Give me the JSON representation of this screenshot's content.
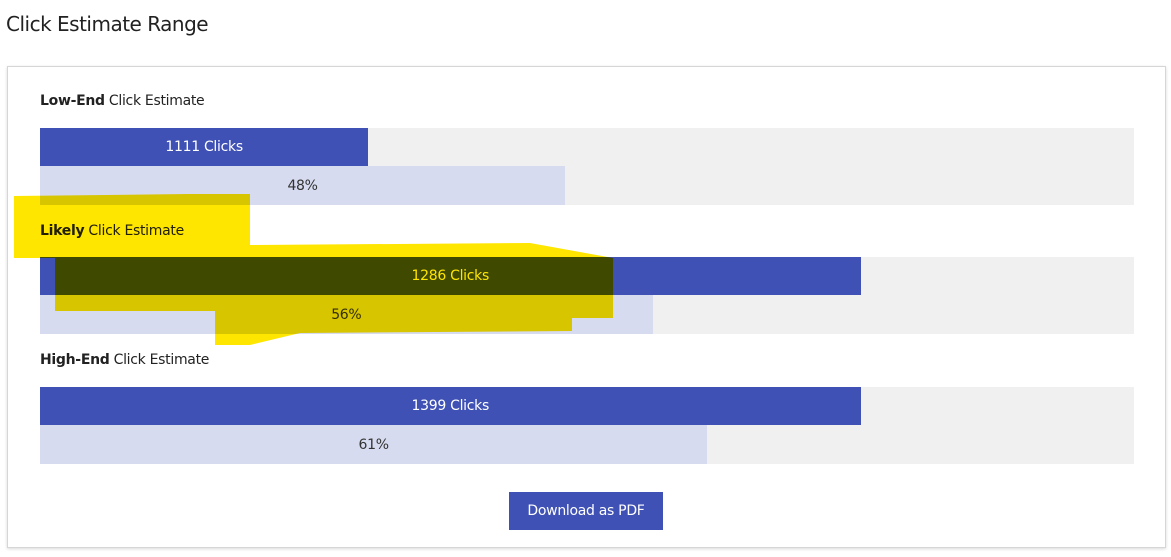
{
  "title": "Click Estimate Range",
  "rows": [
    {
      "strong": "Low-End",
      "rest": " Click Estimate",
      "clicks_label": "1111 Clicks",
      "clicks_fill_pct": 30,
      "percent_label": "48%",
      "percent": 48
    },
    {
      "strong": "Likely",
      "rest": " Click Estimate",
      "clicks_label": "1286 Clicks",
      "clicks_fill_pct": 75,
      "percent_label": "56%",
      "percent": 56
    },
    {
      "strong": "High-End",
      "rest": " Click Estimate",
      "clicks_label": "1399 Clicks",
      "clicks_fill_pct": 75,
      "percent_label": "61%",
      "percent": 61
    }
  ],
  "download_button": "Download as PDF",
  "colors": {
    "accent": "#3f51b5",
    "light_bar": "#d7dbef",
    "track": "#f0f0f0",
    "highlight": "#ffe600"
  }
}
